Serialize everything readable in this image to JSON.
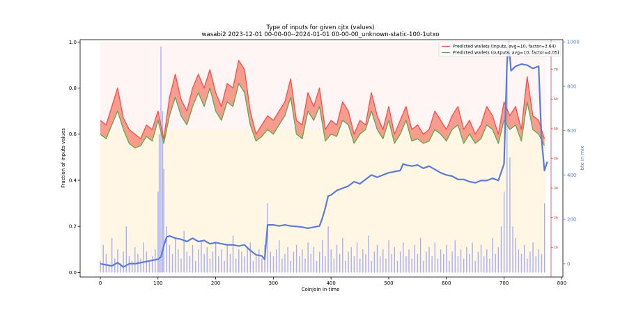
{
  "chart_data": {
    "type": "line",
    "title": "Type of inputs for given cjtx (values)",
    "subtitle": "wasabi2 2023-12-01 00-00-00--2024-01-01 00-00-00_unknown-static-100-1utxo",
    "xlabel": "Coinjoin in time",
    "ylabel": "Fraction of inputs values",
    "y2label": "btc in mix",
    "xlim": [
      -35,
      802
    ],
    "ylim": [
      -0.02,
      1.01
    ],
    "y2lim": [
      -60,
      1010
    ],
    "x_ticks": [
      0,
      100,
      200,
      300,
      400,
      500,
      600,
      700,
      800
    ],
    "y_ticks": [
      0.0,
      0.2,
      0.4,
      0.6,
      0.8,
      1.0
    ],
    "y2_ticks": [
      0,
      200,
      400,
      600,
      800,
      1000
    ],
    "y3_ticks": [
      10,
      20,
      30,
      40,
      50,
      60,
      70
    ],
    "legend_position": "top-right",
    "grid": false,
    "series": [
      {
        "name": "Predicted wallets (inputs, avg=10, factor=3.64)",
        "color": "#ff4a4a",
        "axis": "left",
        "x": [
          0,
          10,
          20,
          30,
          40,
          50,
          60,
          70,
          80,
          90,
          100,
          110,
          120,
          130,
          140,
          150,
          160,
          170,
          180,
          190,
          200,
          210,
          220,
          230,
          240,
          250,
          260,
          270,
          280,
          290,
          300,
          310,
          320,
          330,
          340,
          350,
          360,
          370,
          380,
          390,
          400,
          410,
          420,
          430,
          440,
          450,
          460,
          470,
          480,
          490,
          500,
          510,
          520,
          530,
          540,
          550,
          560,
          570,
          580,
          590,
          600,
          610,
          620,
          630,
          640,
          650,
          660,
          670,
          680,
          690,
          700,
          710,
          720,
          730,
          740,
          750,
          760,
          770
        ],
        "values": [
          0.66,
          0.64,
          0.72,
          0.8,
          0.67,
          0.62,
          0.6,
          0.58,
          0.64,
          0.62,
          0.7,
          0.58,
          0.76,
          0.86,
          0.75,
          0.7,
          0.8,
          0.86,
          0.8,
          0.88,
          0.78,
          0.72,
          0.82,
          0.8,
          0.92,
          0.88,
          0.7,
          0.6,
          0.64,
          0.68,
          0.66,
          0.7,
          0.74,
          0.84,
          0.66,
          0.64,
          0.78,
          0.72,
          0.8,
          0.62,
          0.66,
          0.64,
          0.74,
          0.7,
          0.6,
          0.66,
          0.64,
          0.78,
          0.68,
          0.62,
          0.72,
          0.6,
          0.66,
          0.72,
          0.62,
          0.64,
          0.6,
          0.62,
          0.7,
          0.66,
          0.62,
          0.68,
          0.72,
          0.62,
          0.66,
          0.6,
          0.64,
          0.72,
          0.68,
          0.6,
          0.74,
          0.68,
          0.72,
          0.62,
          0.85,
          0.68,
          0.66,
          0.58
        ]
      },
      {
        "name": "Predicted wallets (outputs, avg=10, factor=4.05)",
        "color": "#5aaa4a",
        "axis": "left",
        "x": [
          0,
          10,
          20,
          30,
          40,
          50,
          60,
          70,
          80,
          90,
          100,
          110,
          120,
          130,
          140,
          150,
          160,
          170,
          180,
          190,
          200,
          210,
          220,
          230,
          240,
          250,
          260,
          270,
          280,
          290,
          300,
          310,
          320,
          330,
          340,
          350,
          360,
          370,
          380,
          390,
          400,
          410,
          420,
          430,
          440,
          450,
          460,
          470,
          480,
          490,
          500,
          510,
          520,
          530,
          540,
          550,
          560,
          570,
          580,
          590,
          600,
          610,
          620,
          630,
          640,
          650,
          660,
          670,
          680,
          690,
          700,
          710,
          720,
          730,
          740,
          750,
          760,
          770
        ],
        "values": [
          0.6,
          0.58,
          0.64,
          0.7,
          0.62,
          0.56,
          0.54,
          0.55,
          0.59,
          0.57,
          0.66,
          0.56,
          0.68,
          0.76,
          0.68,
          0.64,
          0.72,
          0.78,
          0.72,
          0.8,
          0.7,
          0.66,
          0.74,
          0.72,
          0.82,
          0.78,
          0.64,
          0.57,
          0.59,
          0.62,
          0.6,
          0.64,
          0.68,
          0.76,
          0.6,
          0.58,
          0.7,
          0.66,
          0.72,
          0.57,
          0.6,
          0.59,
          0.66,
          0.64,
          0.56,
          0.6,
          0.62,
          0.7,
          0.62,
          0.58,
          0.66,
          0.56,
          0.6,
          0.66,
          0.57,
          0.58,
          0.56,
          0.57,
          0.62,
          0.6,
          0.57,
          0.62,
          0.64,
          0.56,
          0.6,
          0.56,
          0.58,
          0.64,
          0.62,
          0.56,
          0.66,
          0.62,
          0.64,
          0.57,
          0.74,
          0.62,
          0.6,
          0.55
        ]
      },
      {
        "name": "btc in mix",
        "color": "#5a7bd8",
        "axis": "right",
        "x": [
          0,
          10,
          20,
          30,
          40,
          50,
          60,
          70,
          80,
          90,
          100,
          105,
          110,
          115,
          120,
          130,
          140,
          150,
          160,
          170,
          180,
          190,
          200,
          210,
          220,
          230,
          240,
          250,
          260,
          270,
          280,
          285,
          290,
          300,
          310,
          320,
          330,
          340,
          350,
          360,
          370,
          380,
          385,
          390,
          395,
          400,
          410,
          420,
          430,
          440,
          450,
          460,
          470,
          480,
          490,
          500,
          510,
          520,
          525,
          530,
          540,
          550,
          560,
          570,
          580,
          590,
          600,
          610,
          620,
          630,
          640,
          650,
          660,
          670,
          680,
          690,
          700,
          705,
          708,
          712,
          720,
          730,
          740,
          750,
          760,
          762,
          765,
          770,
          775
        ],
        "values": [
          0,
          -5,
          -10,
          5,
          -15,
          0,
          0,
          5,
          10,
          15,
          20,
          30,
          80,
          120,
          125,
          115,
          110,
          100,
          115,
          100,
          105,
          90,
          95,
          90,
          85,
          85,
          80,
          85,
          60,
          40,
          35,
          20,
          175,
          175,
          170,
          175,
          170,
          168,
          165,
          160,
          165,
          170,
          205,
          250,
          305,
          310,
          330,
          340,
          350,
          370,
          360,
          380,
          400,
          390,
          400,
          410,
          415,
          420,
          450,
          445,
          440,
          445,
          430,
          440,
          425,
          410,
          400,
          395,
          380,
          380,
          370,
          365,
          375,
          375,
          385,
          375,
          450,
          900,
          1000,
          870,
          890,
          900,
          895,
          880,
          890,
          750,
          560,
          420,
          460
        ]
      }
    ],
    "background_bars": {
      "x": [
        0,
        5,
        10,
        15,
        20,
        25,
        30,
        35,
        40,
        45,
        50,
        55,
        60,
        65,
        70,
        75,
        80,
        85,
        90,
        95,
        100,
        102,
        105,
        108,
        110,
        115,
        120,
        125,
        130,
        135,
        140,
        145,
        150,
        155,
        160,
        165,
        170,
        175,
        180,
        185,
        190,
        195,
        200,
        205,
        210,
        215,
        220,
        225,
        230,
        235,
        240,
        245,
        250,
        255,
        260,
        265,
        270,
        275,
        280,
        285,
        290,
        295,
        300,
        305,
        310,
        315,
        320,
        325,
        330,
        335,
        340,
        345,
        350,
        355,
        360,
        365,
        370,
        375,
        380,
        385,
        390,
        395,
        400,
        405,
        410,
        415,
        420,
        425,
        430,
        435,
        440,
        445,
        450,
        455,
        460,
        465,
        470,
        475,
        480,
        485,
        490,
        495,
        500,
        505,
        510,
        515,
        520,
        525,
        530,
        535,
        540,
        545,
        550,
        555,
        560,
        565,
        570,
        575,
        580,
        585,
        590,
        595,
        600,
        605,
        610,
        615,
        620,
        625,
        630,
        635,
        640,
        645,
        650,
        655,
        660,
        665,
        670,
        675,
        680,
        685,
        690,
        695,
        700,
        705,
        710,
        715,
        720,
        725,
        730,
        735,
        740,
        745,
        750,
        755,
        760,
        765,
        770
      ],
      "values": [
        0.05,
        0.12,
        0.08,
        0.03,
        0.15,
        0.06,
        0.1,
        0.04,
        0.09,
        0.2,
        0.07,
        0.05,
        0.11,
        0.08,
        0.06,
        0.13,
        0.09,
        0.05,
        0.07,
        0.1,
        0.35,
        0.6,
        0.98,
        0.7,
        0.45,
        0.2,
        0.12,
        0.08,
        0.15,
        0.1,
        0.06,
        0.18,
        0.09,
        0.07,
        0.12,
        0.05,
        0.1,
        0.14,
        0.08,
        0.11,
        0.06,
        0.09,
        0.13,
        0.07,
        0.1,
        0.05,
        0.12,
        0.08,
        0.16,
        0.06,
        0.1,
        0.09,
        0.07,
        0.11,
        0.13,
        0.05,
        0.08,
        0.1,
        0.06,
        0.12,
        0.3,
        0.09,
        0.07,
        0.1,
        0.14,
        0.06,
        0.08,
        0.11,
        0.05,
        0.09,
        0.12,
        0.07,
        0.1,
        0.06,
        0.13,
        0.08,
        0.11,
        0.05,
        0.09,
        0.14,
        0.07,
        0.2,
        0.1,
        0.06,
        0.12,
        0.08,
        0.15,
        0.05,
        0.09,
        0.11,
        0.07,
        0.13,
        0.06,
        0.1,
        0.08,
        0.16,
        0.05,
        0.09,
        0.12,
        0.07,
        0.1,
        0.06,
        0.14,
        0.08,
        0.11,
        0.05,
        0.09,
        0.13,
        0.07,
        0.1,
        0.06,
        0.12,
        0.08,
        0.15,
        0.05,
        0.09,
        0.11,
        0.07,
        0.13,
        0.06,
        0.1,
        0.08,
        0.12,
        0.05,
        0.09,
        0.14,
        0.07,
        0.1,
        0.06,
        0.11,
        0.08,
        0.13,
        0.05,
        0.09,
        0.12,
        0.07,
        0.1,
        0.06,
        0.15,
        0.08,
        0.11,
        0.2,
        0.35,
        0.98,
        0.5,
        0.2,
        0.15,
        0.1,
        0.08,
        0.12,
        0.06,
        0.09,
        0.13,
        0.07,
        0.1,
        0.08,
        0.3
      ],
      "color": "#8a95ff"
    }
  }
}
